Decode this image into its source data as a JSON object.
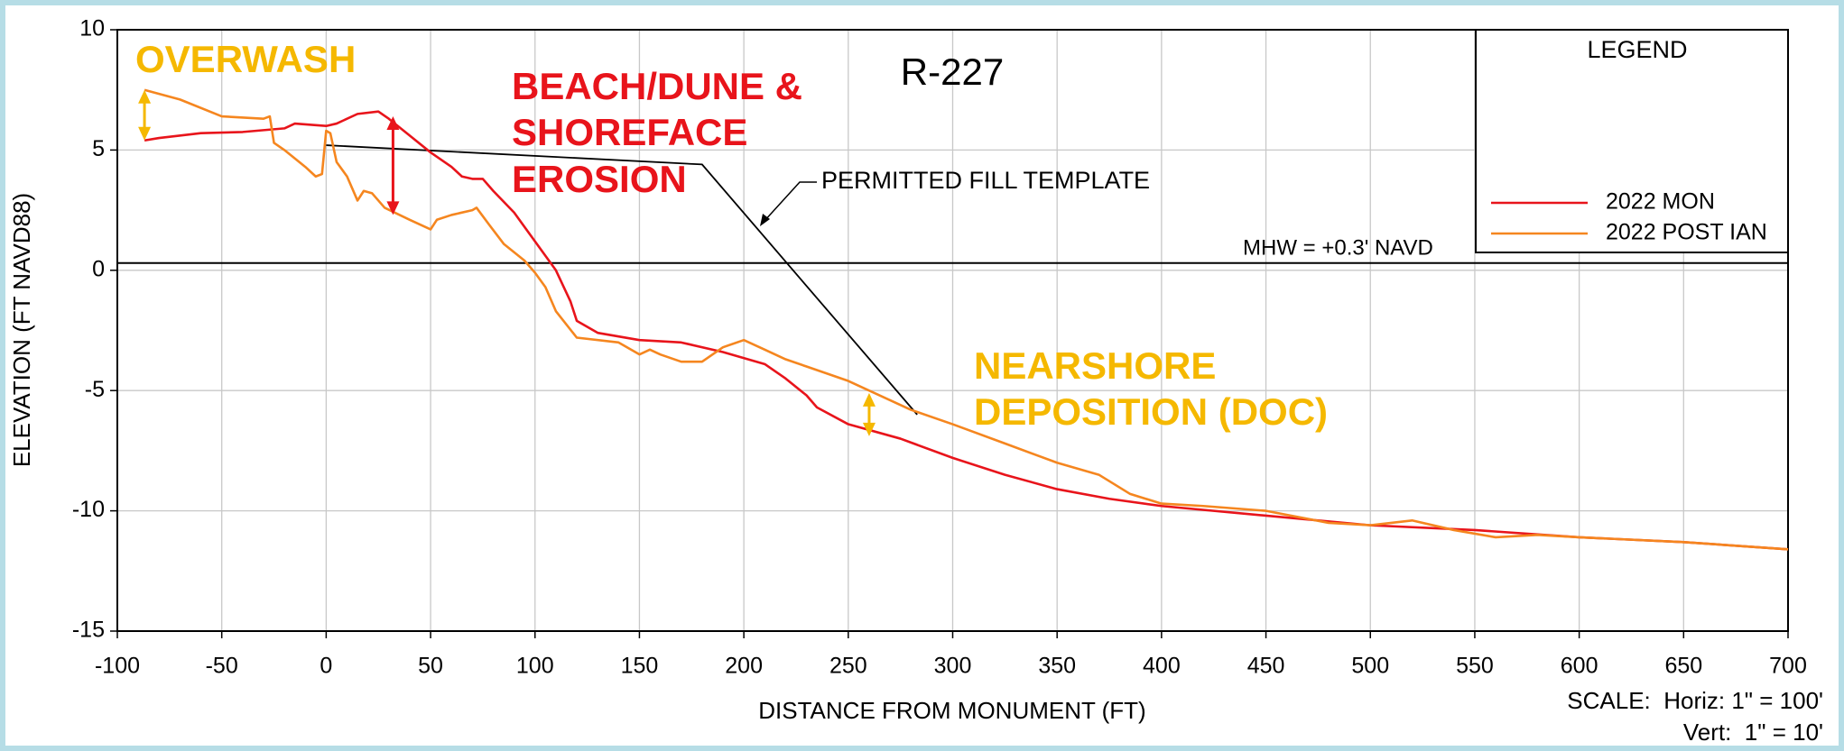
{
  "chart_data": {
    "type": "line",
    "title": "R-227",
    "x_label": "DISTANCE FROM MONUMENT (FT)",
    "y_label": "ELEVATION (FT NAVD88)",
    "xlim": [
      -100,
      700
    ],
    "xticks": [
      -100,
      -50,
      0,
      50,
      100,
      150,
      200,
      250,
      300,
      350,
      400,
      450,
      500,
      550,
      600,
      650,
      700
    ],
    "ylim": [
      -15,
      10
    ],
    "yticks": [
      -15,
      -10,
      -5,
      0,
      5,
      10
    ],
    "grid": true,
    "legend_title": "LEGEND",
    "legend": "upper right",
    "series": [
      {
        "name": "2022 MON",
        "color": "#e8141b",
        "x": [
          -87,
          -80,
          -60,
          -40,
          -20,
          -15,
          0,
          5,
          15,
          25,
          30,
          40,
          50,
          60,
          65,
          70,
          75,
          80,
          90,
          100,
          110,
          117,
          120,
          130,
          150,
          170,
          190,
          210,
          220,
          230,
          235,
          250,
          275,
          300,
          325,
          350,
          375,
          400,
          450,
          500,
          550,
          600,
          650,
          700
        ],
        "values": [
          5.4,
          5.5,
          5.7,
          5.75,
          5.9,
          6.1,
          6.0,
          6.1,
          6.5,
          6.6,
          6.3,
          5.6,
          4.9,
          4.3,
          3.9,
          3.8,
          3.8,
          3.3,
          2.4,
          1.2,
          0.0,
          -1.3,
          -2.1,
          -2.6,
          -2.9,
          -3.0,
          -3.4,
          -3.9,
          -4.5,
          -5.2,
          -5.7,
          -6.4,
          -7.0,
          -7.8,
          -8.5,
          -9.1,
          -9.5,
          -9.8,
          -10.2,
          -10.6,
          -10.8,
          -11.1,
          -11.3,
          -11.6
        ]
      },
      {
        "name": "2022 POST IAN",
        "color": "#f5861f",
        "x": [
          -87,
          -70,
          -50,
          -30,
          -27,
          -25,
          -20,
          -10,
          -5,
          -2,
          0,
          2,
          5,
          10,
          15,
          18,
          22,
          28,
          40,
          50,
          53,
          60,
          70,
          72,
          78,
          85,
          95,
          100,
          105,
          110,
          120,
          140,
          150,
          155,
          160,
          170,
          180,
          190,
          200,
          210,
          220,
          230,
          250,
          280,
          300,
          325,
          350,
          370,
          385,
          400,
          420,
          450,
          480,
          500,
          520,
          540,
          560,
          580,
          600,
          650,
          700
        ],
        "values": [
          7.5,
          7.1,
          6.4,
          6.3,
          6.4,
          5.3,
          5.0,
          4.3,
          3.9,
          4.0,
          5.8,
          5.7,
          4.5,
          3.9,
          2.9,
          3.3,
          3.2,
          2.6,
          2.1,
          1.7,
          2.1,
          2.3,
          2.5,
          2.6,
          1.9,
          1.1,
          0.4,
          -0.1,
          -0.7,
          -1.7,
          -2.8,
          -3.0,
          -3.5,
          -3.3,
          -3.5,
          -3.8,
          -3.8,
          -3.2,
          -2.9,
          -3.3,
          -3.7,
          -4.0,
          -4.6,
          -5.8,
          -6.4,
          -7.2,
          -8.0,
          -8.5,
          -9.3,
          -9.7,
          -9.8,
          -10.0,
          -10.5,
          -10.6,
          -10.4,
          -10.8,
          -11.1,
          -11.0,
          -11.1,
          -11.3,
          -11.6
        ]
      }
    ],
    "template": {
      "label": "PERMITTED FILL TEMPLATE",
      "x": [
        0,
        180,
        283
      ],
      "y": [
        5.2,
        4.4,
        -6.0
      ]
    },
    "mhw": {
      "label": "MHW = +0.3' NAVD",
      "value": 0.3
    },
    "arrows": [
      {
        "color": "#f5b800",
        "x": -87,
        "y": [
          5.4,
          7.5
        ]
      },
      {
        "color": "#e8141b",
        "x": 32,
        "y": [
          2.3,
          6.4
        ]
      },
      {
        "color": "#f5b800",
        "x": 260,
        "y": [
          -6.9,
          -5.1
        ]
      }
    ],
    "annotations": {
      "overwash": "OVERWASH",
      "erosion": [
        "BEACH/DUNE &",
        "SHOREFACE",
        "EROSION"
      ],
      "deposition": [
        "NEARSHORE",
        "DEPOSITION (DOC)"
      ]
    },
    "scale_note": [
      "SCALE:  Horiz: 1\" = 100'",
      "Vert:  1\" = 10'"
    ]
  }
}
